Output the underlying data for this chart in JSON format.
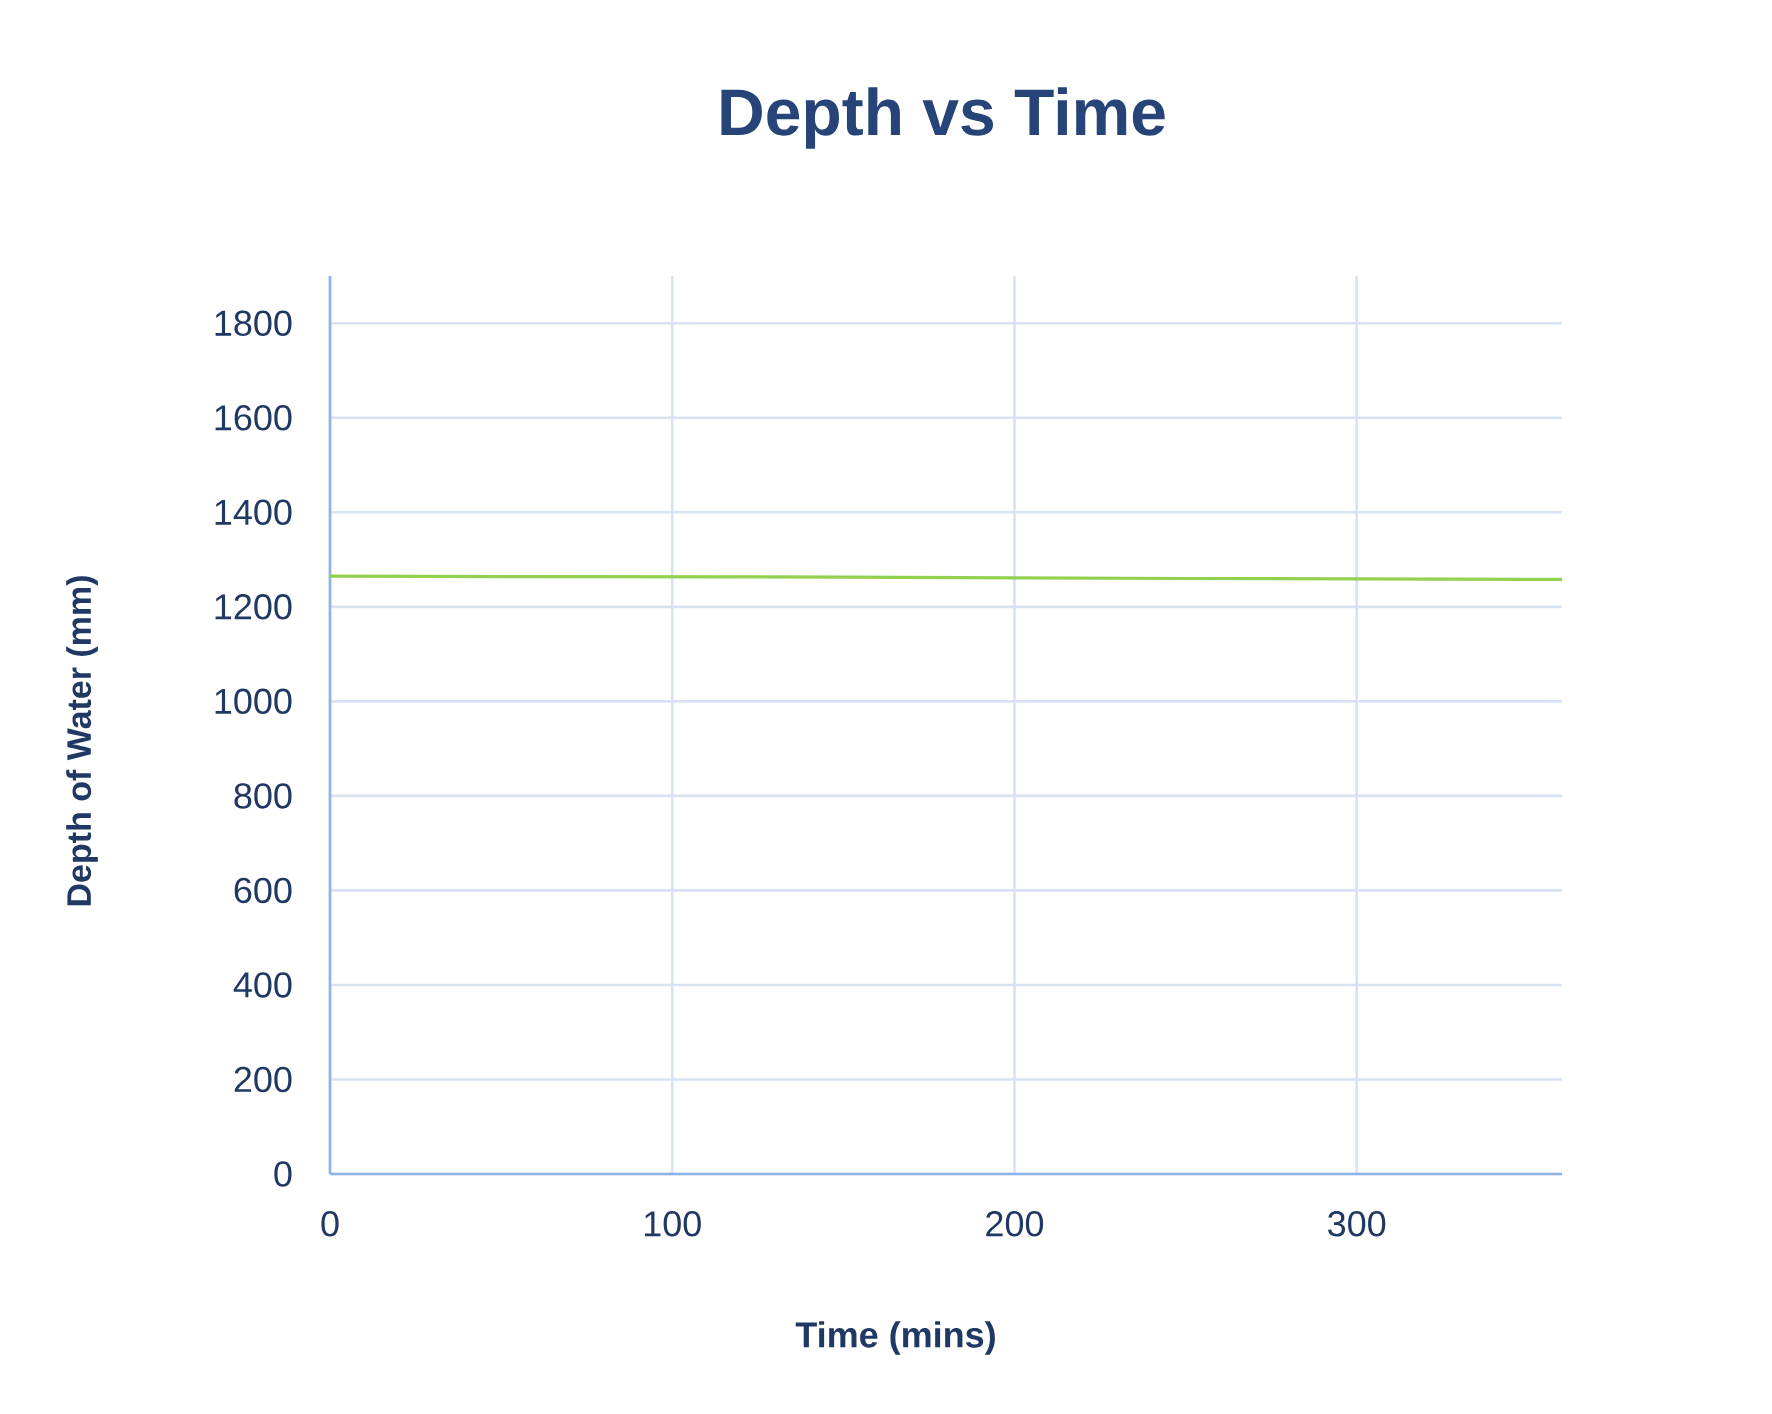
{
  "chart_data": {
    "type": "line",
    "title": "Depth vs Time",
    "xlabel": "Time (mins)",
    "ylabel": "Depth of Water (mm)",
    "x": [
      0,
      60,
      150,
      250,
      360
    ],
    "series": [
      {
        "color": "#92d050",
        "values": [
          1265,
          1264,
          1263,
          1260,
          1258
        ]
      }
    ],
    "xlim": [
      0,
      360
    ],
    "ylim": [
      0,
      1900
    ],
    "xticks": [
      0,
      100,
      200,
      300
    ],
    "yticks": [
      0,
      200,
      400,
      600,
      800,
      1000,
      1200,
      1400,
      1600,
      1800
    ],
    "grid": true,
    "marker": "none",
    "line_style": "solid"
  }
}
